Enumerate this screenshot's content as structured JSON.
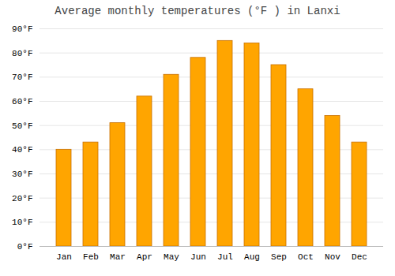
{
  "chart_data": {
    "type": "bar",
    "title": "Average monthly temperatures (°F ) in Lanxi",
    "categories": [
      "Jan",
      "Feb",
      "Mar",
      "Apr",
      "May",
      "Jun",
      "Jul",
      "Aug",
      "Sep",
      "Oct",
      "Nov",
      "Dec"
    ],
    "values": [
      40,
      43,
      51,
      62,
      71,
      78,
      85,
      84,
      75,
      65,
      54,
      43
    ],
    "color": "#FFA500",
    "ylim": [
      0,
      90
    ],
    "yticks": [
      {
        "value": 0,
        "label": "0°F"
      },
      {
        "value": 10,
        "label": "10°F"
      },
      {
        "value": 20,
        "label": "20°F"
      },
      {
        "value": 30,
        "label": "30°F"
      },
      {
        "value": 40,
        "label": "40°F"
      },
      {
        "value": 50,
        "label": "50°F"
      },
      {
        "value": 60,
        "label": "60°F"
      },
      {
        "value": 70,
        "label": "70°F"
      },
      {
        "value": 80,
        "label": "80°F"
      },
      {
        "value": 90,
        "label": "90°F"
      }
    ],
    "grid": true
  }
}
